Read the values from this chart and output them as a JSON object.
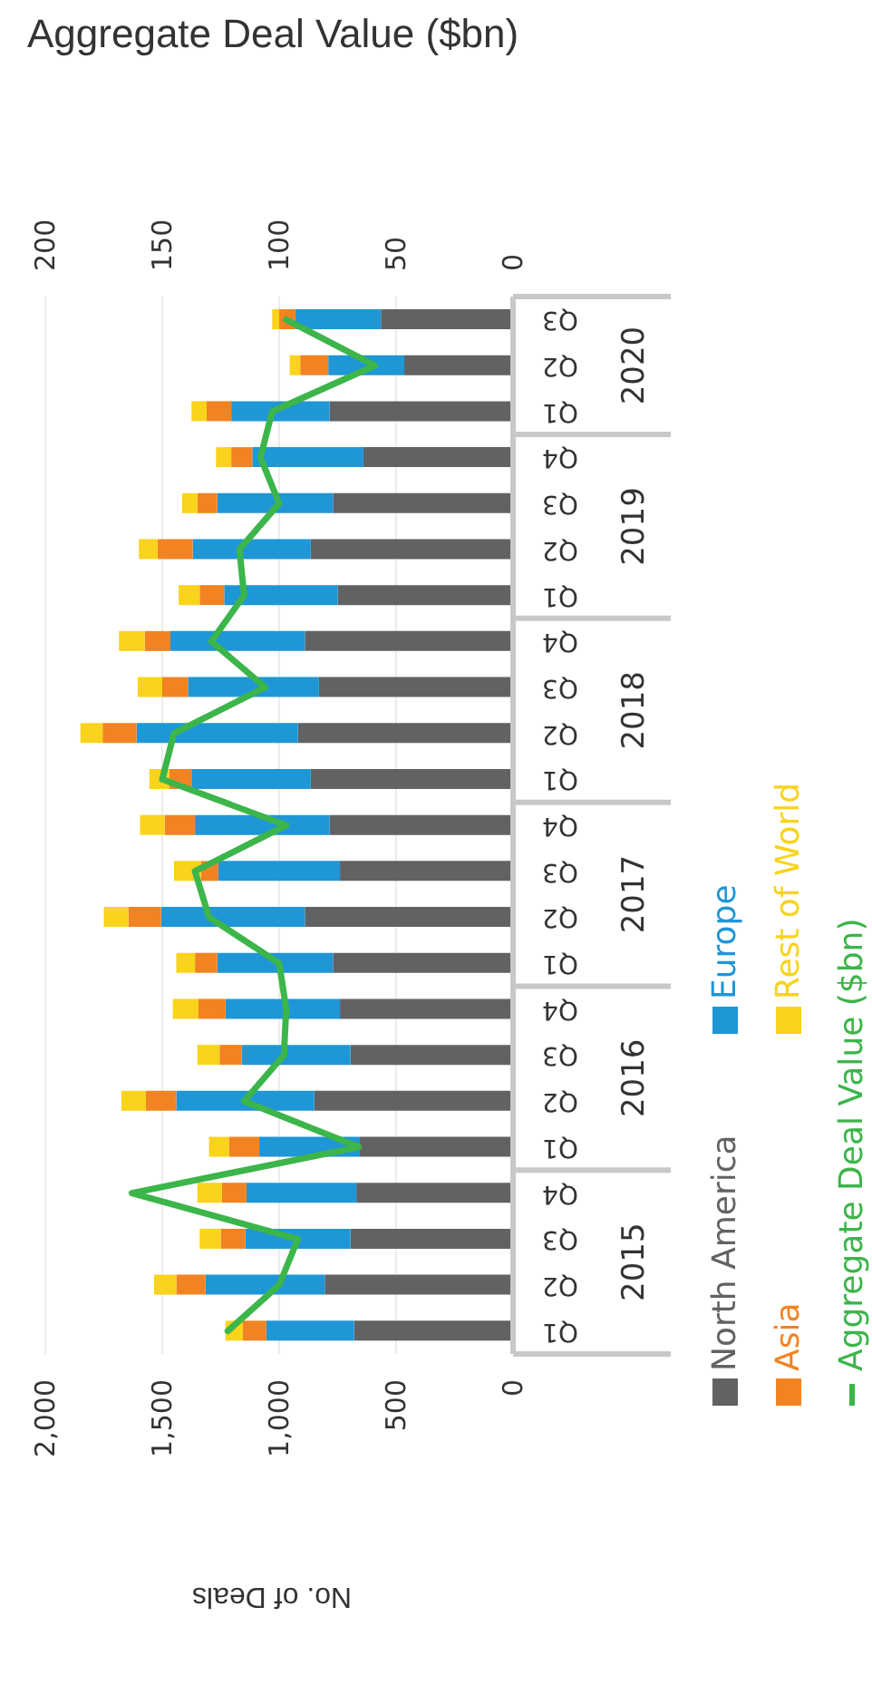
{
  "chart_data": {
    "type": "bar",
    "orientation": "horizontal",
    "stacked": true,
    "xlabel": "No. of Deals",
    "x2label": "Aggregate Deal Value ($bn)",
    "categories": [
      "Q3",
      "Q2",
      "Q1",
      "Q4",
      "Q3",
      "Q2",
      "Q1",
      "Q4",
      "Q3",
      "Q2",
      "Q1",
      "Q4",
      "Q3",
      "Q2",
      "Q1",
      "Q4",
      "Q3",
      "Q2",
      "Q1",
      "Q4",
      "Q3",
      "Q2",
      "Q1"
    ],
    "annotations": [
      "2020",
      "2019",
      "2018",
      "2017",
      "2016",
      "2015"
    ],
    "series": [
      {
        "name": "North America",
        "color": "#616264",
        "values": [
          565,
          465,
          785,
          640,
          770,
          865,
          750,
          890,
          830,
          920,
          865,
          785,
          740,
          890,
          770,
          740,
          695,
          850,
          655,
          670,
          695,
          805,
          680
        ]
      },
      {
        "name": "Europe",
        "color": "#1f96d6",
        "values": [
          365,
          325,
          420,
          475,
          495,
          505,
          485,
          575,
          560,
          690,
          510,
          575,
          520,
          615,
          495,
          490,
          465,
          590,
          430,
          470,
          450,
          510,
          375
        ]
      },
      {
        "name": "Asia",
        "color": "#f28322",
        "values": [
          70,
          120,
          105,
          90,
          85,
          150,
          105,
          110,
          110,
          145,
          95,
          130,
          75,
          140,
          95,
          115,
          95,
          130,
          130,
          105,
          105,
          125,
          100
        ]
      },
      {
        "name": "Rest of World",
        "color": "#f9d31c",
        "values": [
          30,
          45,
          65,
          65,
          65,
          80,
          90,
          110,
          105,
          95,
          85,
          105,
          115,
          105,
          80,
          110,
          95,
          105,
          85,
          105,
          90,
          95,
          75
        ]
      },
      {
        "name": "Aggregate Deal Value ($bn)",
        "type": "line",
        "axis": "x2",
        "color": "#3cb54a",
        "values": [
          97,
          59,
          103,
          108,
          100,
          117,
          115,
          129,
          106,
          145,
          150,
          97,
          136,
          130,
          100,
          97,
          98,
          115,
          66,
          163,
          92,
          100,
          122
        ]
      }
    ],
    "xlim": [
      2000,
      0
    ],
    "xticks": [
      0,
      500,
      {
        "value": 1000,
        "label": "1,000"
      },
      {
        "value": 1500,
        "label": "1,500"
      },
      {
        "value": 2000,
        "label": "2,000"
      }
    ],
    "x2lim": [
      200,
      0
    ],
    "x2ticks": [
      0,
      50,
      100,
      150,
      200
    ],
    "grid": "x",
    "legend": "right",
    "marker": "none",
    "line_style": "solid"
  }
}
